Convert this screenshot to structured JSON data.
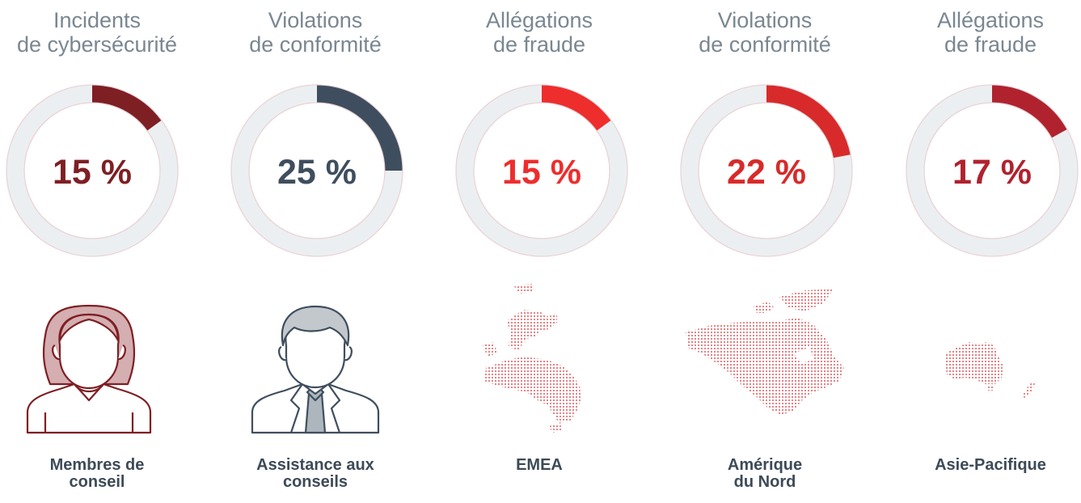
{
  "chart_data": {
    "type": "donut",
    "categories": [
      "Membres de conseil",
      "Assistance aux conseils",
      "EMEA",
      "Amérique du Nord",
      "Asie-Pacifique"
    ],
    "values": [
      15,
      25,
      15,
      22,
      17
    ],
    "items": [
      {
        "title_lines": [
          "Incidents",
          "de cybersécurité"
        ],
        "value": 15,
        "value_label": "15 %",
        "label_lines": [
          "Membres de",
          "conseil"
        ],
        "color": "#7e1f24",
        "icon": "woman-avatar-icon"
      },
      {
        "title_lines": [
          "Violations",
          "de conformité"
        ],
        "value": 25,
        "value_label": "25 %",
        "label_lines": [
          "Assistance aux",
          "conseils"
        ],
        "color": "#3f4e5e",
        "icon": "man-avatar-icon"
      },
      {
        "title_lines": [
          "Allégations",
          "de fraude"
        ],
        "value": 15,
        "value_label": "15 %",
        "label_lines": [
          "EMEA"
        ],
        "color": "#ee2d2d",
        "icon": "emea-map-icon"
      },
      {
        "title_lines": [
          "Violations",
          "de conformité"
        ],
        "value": 22,
        "value_label": "22 %",
        "label_lines": [
          "Amérique",
          "du Nord"
        ],
        "color": "#d82a2a",
        "icon": "north-america-map-icon"
      },
      {
        "title_lines": [
          "Allégations",
          "de fraude"
        ],
        "value": 17,
        "value_label": "17 %",
        "label_lines": [
          "Asie-Pacifique"
        ],
        "color": "#b0222e",
        "icon": "asia-pacific-map-icon"
      }
    ],
    "track_color": "#eceff1",
    "ylim": [
      0,
      100
    ]
  }
}
